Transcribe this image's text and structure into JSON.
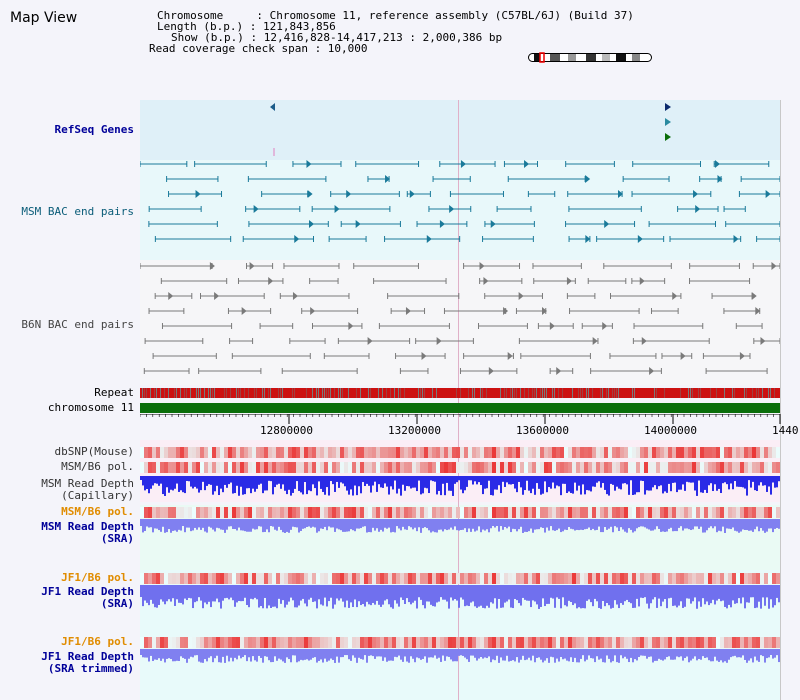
{
  "map_title": "Map View",
  "header": {
    "line1": "Chromosome     : Chromosome 11, reference assembly (C57BL/6J) (Build 37)",
    "line2": "Length (b.p.) : 121,843,856",
    "line3": "Show (b.p.) : 12,416,828-14,417,213 : 2,000,386 bp",
    "line4": "Read coverage check span : 10,000"
  },
  "tracks": {
    "refseq": "RefSeq Genes",
    "msm_bac": "MSM BAC end pairs",
    "b6n_bac": "B6N BAC end pairs",
    "repeat": "Repeat",
    "chromosome": "chromosome 11",
    "dbsnp": "dbSNP(Mouse)",
    "msm_b6_pol": "MSM/B6 pol.",
    "msm_depth_cap_1": "MSM Read Depth",
    "msm_depth_cap_2": "(Capillary)",
    "msm_b6_pol_2": "MSM/B6 pol.",
    "msm_depth_sra_1": "MSM Read Depth",
    "msm_depth_sra_2": "(SRA)",
    "jf1_pol": "JF1/B6 pol.",
    "jf1_depth_sra_1": "JF1 Read Depth",
    "jf1_depth_sra_2": "(SRA)",
    "jf1_pol_2": "JF1/B6 pol.",
    "jf1_depth_trim_1": "JF1 Read Depth",
    "jf1_depth_trim_2": "(SRA trimmed)"
  },
  "axis": {
    "ticks": [
      "12800000",
      "13200000",
      "13600000",
      "14000000",
      "1440"
    ]
  },
  "colors": {
    "chromosome": "#0a6e0a",
    "repeat_bg": "#cc1111",
    "depth_capillary": "#2a2ae6",
    "depth_sra": "#8080f0",
    "gene_blue": "#1a6e8a",
    "bac_gray": "#777777",
    "label_navy": "#000099",
    "label_orange": "#e08c00"
  }
}
